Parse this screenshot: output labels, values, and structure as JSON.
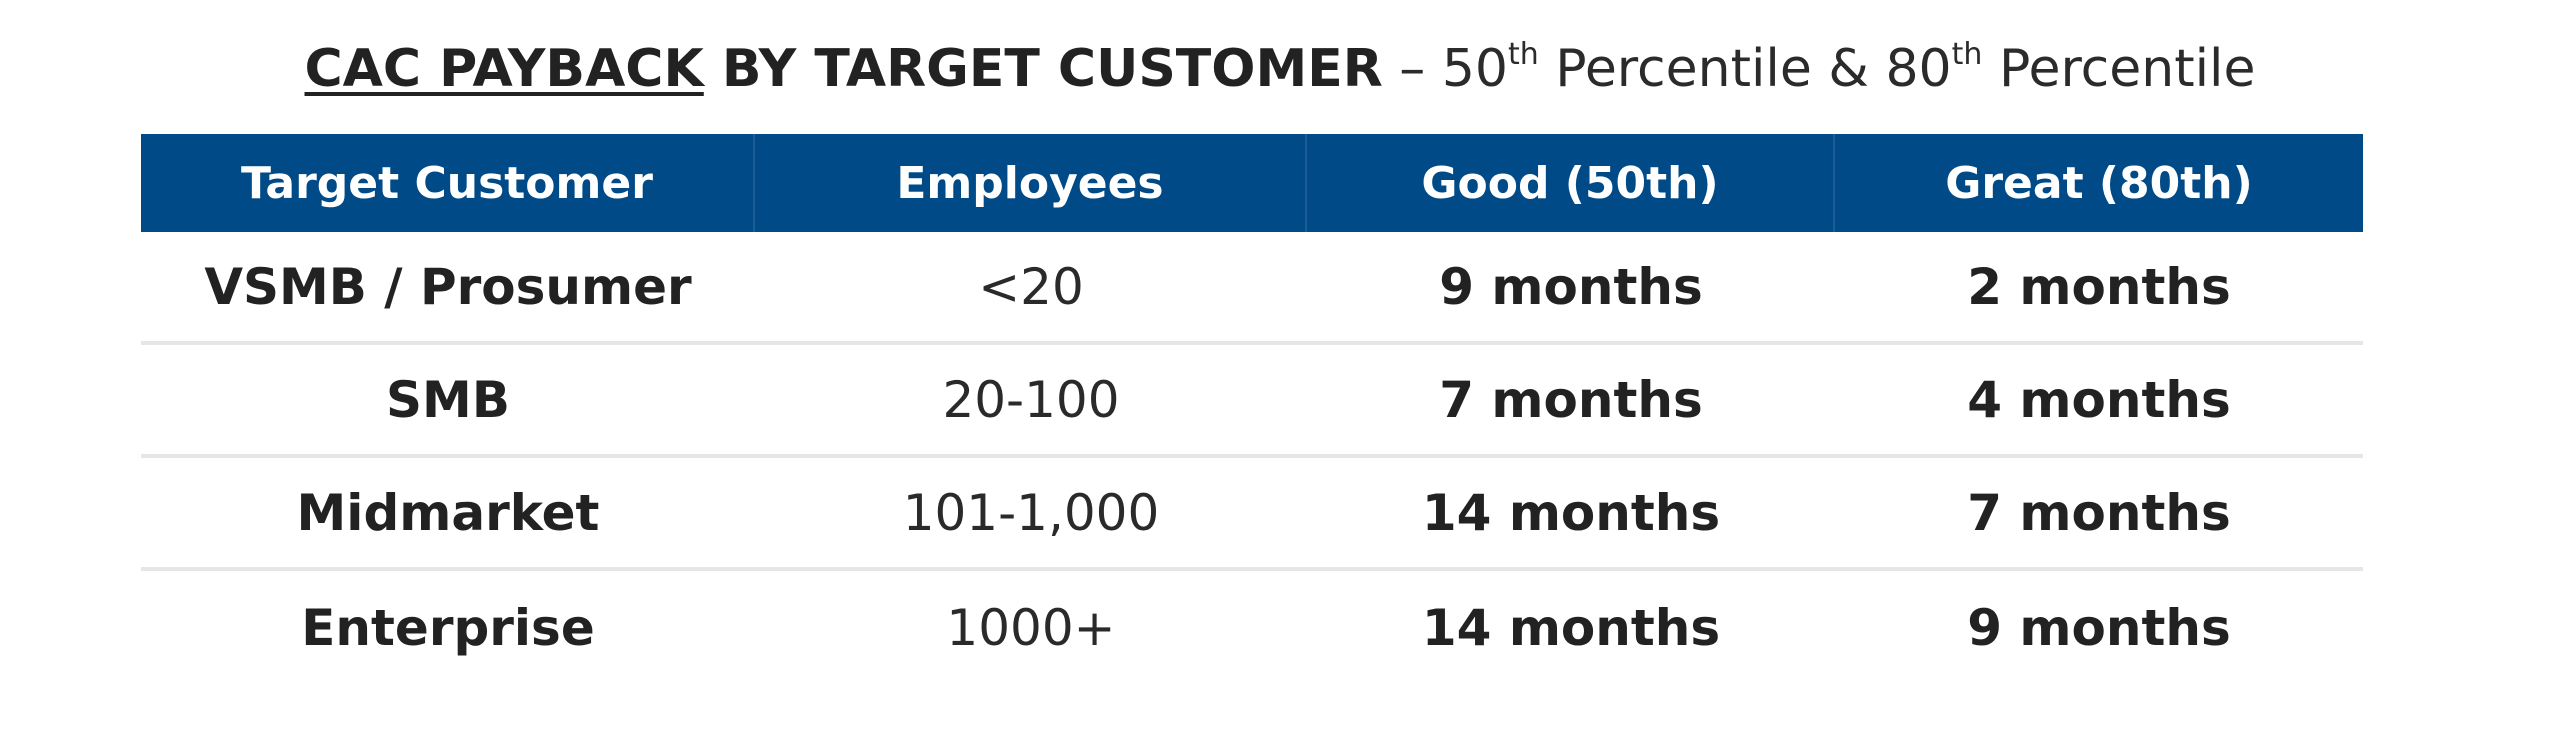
{
  "title": {
    "bold_underlined": "CAC PAYBACK",
    "bold_rest": " BY TARGET CUSTOMER",
    "dash": " – 50",
    "sup1": "th",
    "mid": " Percentile & 80",
    "sup2": "th",
    "end": " Percentile"
  },
  "table": {
    "headers": [
      "Target Customer",
      "Employees",
      "Good (50th)",
      "Great (80th)"
    ],
    "rows": [
      {
        "target": "VSMB / Prosumer",
        "employees": "<20",
        "good": "9 months",
        "great": "2 months"
      },
      {
        "target": "SMB",
        "employees": "20-100",
        "good": "7 months",
        "great": "4 months"
      },
      {
        "target": "Midmarket",
        "employees": "101-1,000",
        "good": "14 months",
        "great": "7 months"
      },
      {
        "target": "Enterprise",
        "employees": "1000+",
        "good": "14 months",
        "great": "9 months"
      }
    ]
  },
  "colors": {
    "header_bg": "#004a87",
    "header_text": "#ffffff",
    "body_text": "#222222",
    "row_divider": "#e6e6e6"
  }
}
